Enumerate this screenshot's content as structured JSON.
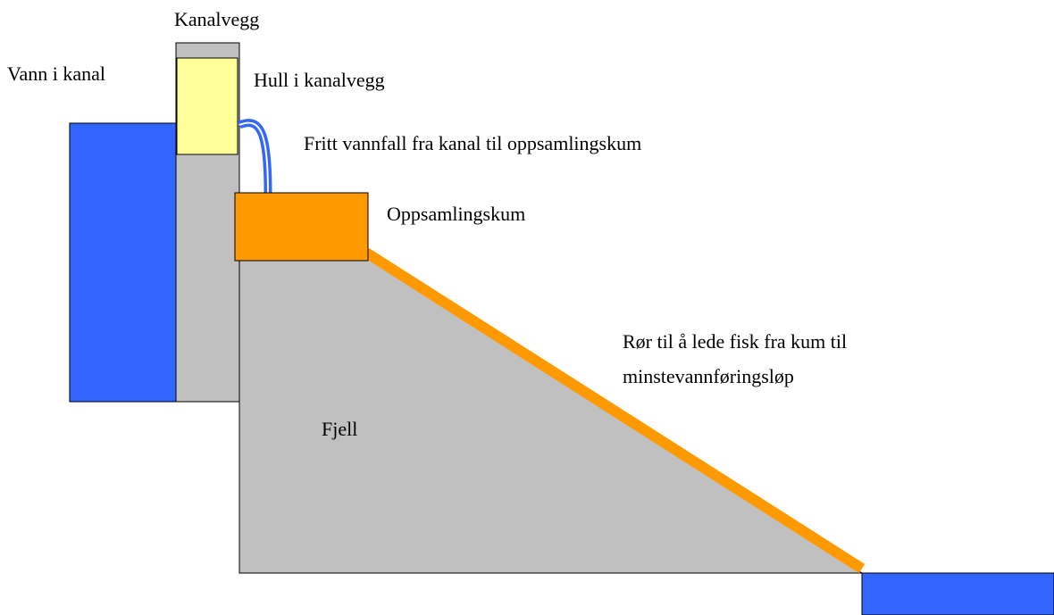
{
  "labels": {
    "canal_wall": "Kanalvegg",
    "canal_water": "Vann i kanal",
    "wall_hole": "Hull i kanalvegg",
    "waterfall": "Fritt vannfall fra kanal til oppsamlingskum",
    "basin": "Oppsamlingskum",
    "pipe": [
      "Rør til å lede fisk fra kum til",
      "minstevannføringsløp"
    ],
    "rock": "Fjell"
  }
}
